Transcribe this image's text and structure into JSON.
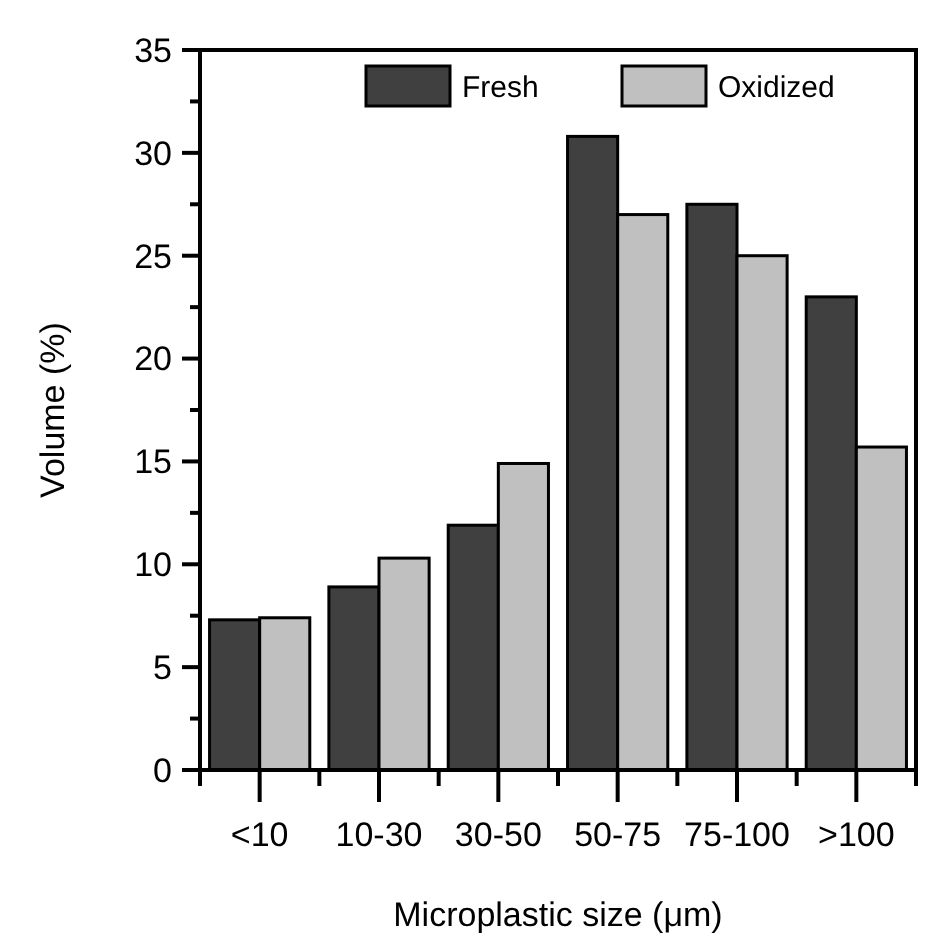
{
  "chart_data": {
    "type": "bar",
    "xlabel": "Microplastic size (μm)",
    "ylabel": "Volume (%)",
    "categories": [
      "<10",
      "10-30",
      "30-50",
      "50-75",
      "75-100",
      ">100"
    ],
    "series": [
      {
        "name": "Fresh",
        "color": "#404040",
        "values": [
          7.3,
          8.9,
          11.9,
          30.8,
          27.5,
          23.0
        ]
      },
      {
        "name": "Oxidized",
        "color": "#c0c0c0",
        "values": [
          7.4,
          10.3,
          14.9,
          27.0,
          25.0,
          15.7
        ]
      }
    ],
    "ylim": [
      0,
      35
    ],
    "yticks": [
      0,
      {
        "value": 2.5,
        "label": null
      },
      5,
      {
        "value": 7.5,
        "label": null
      },
      10,
      {
        "value": 12.5,
        "label": null
      },
      15,
      {
        "value": 17.5,
        "label": null
      },
      20,
      {
        "value": 22.5,
        "label": null
      },
      25,
      {
        "value": 27.5,
        "label": null
      },
      30,
      {
        "value": 32.5,
        "label": null
      },
      35
    ],
    "legend": "top right",
    "grid": false
  }
}
